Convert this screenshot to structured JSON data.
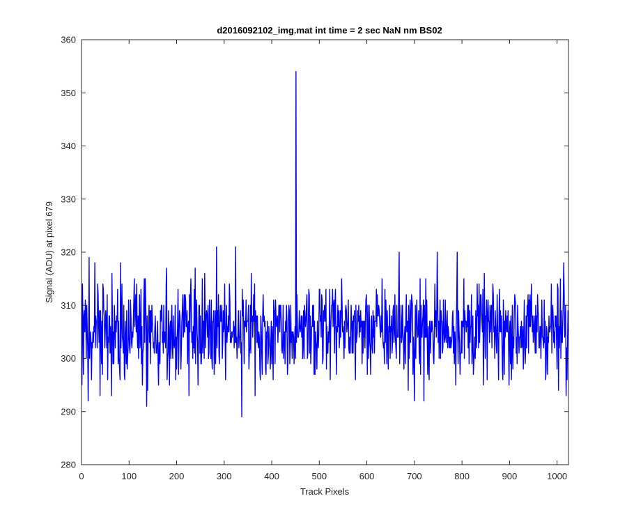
{
  "chart_data": {
    "type": "line",
    "title": "d2016092102_img.mat int time = 2 sec  NaN nm BS02",
    "xlabel": "Track Pixels",
    "ylabel": "Signal (ADU) at pixel 679",
    "xlim": [
      0,
      1024
    ],
    "ylim": [
      280,
      360
    ],
    "xticks": [
      0,
      100,
      200,
      300,
      400,
      500,
      600,
      700,
      800,
      900,
      1000
    ],
    "yticks": [
      280,
      290,
      300,
      310,
      320,
      330,
      340,
      350,
      360
    ],
    "grid": false,
    "legend": "none",
    "series": [
      {
        "color": "#0000ff",
        "noise": {
          "n_points": 1024,
          "baseline": 305.5,
          "min": 289,
          "max": 321
        },
        "points": [
          {
            "x": 1,
            "y": 295
          },
          {
            "x": 5,
            "y": 308
          },
          {
            "x": 10,
            "y": 300
          },
          {
            "x": 14,
            "y": 292
          },
          {
            "x": 16,
            "y": 319
          },
          {
            "x": 21,
            "y": 296
          },
          {
            "x": 28,
            "y": 318
          },
          {
            "x": 39,
            "y": 293
          },
          {
            "x": 45,
            "y": 314
          },
          {
            "x": 55,
            "y": 296
          },
          {
            "x": 82,
            "y": 318
          },
          {
            "x": 91,
            "y": 296
          },
          {
            "x": 128,
            "y": 295
          },
          {
            "x": 132,
            "y": 315
          },
          {
            "x": 137,
            "y": 291
          },
          {
            "x": 139,
            "y": 294
          },
          {
            "x": 198,
            "y": 296
          },
          {
            "x": 245,
            "y": 295
          },
          {
            "x": 284,
            "y": 321
          },
          {
            "x": 303,
            "y": 296
          },
          {
            "x": 324,
            "y": 321
          },
          {
            "x": 337,
            "y": 289
          },
          {
            "x": 376,
            "y": 296
          },
          {
            "x": 450,
            "y": 300
          },
          {
            "x": 451,
            "y": 354
          },
          {
            "x": 452,
            "y": 303
          },
          {
            "x": 523,
            "y": 296
          },
          {
            "x": 668,
            "y": 320
          },
          {
            "x": 700,
            "y": 292
          },
          {
            "x": 720,
            "y": 292
          },
          {
            "x": 748,
            "y": 320
          },
          {
            "x": 790,
            "y": 320
          },
          {
            "x": 877,
            "y": 296
          },
          {
            "x": 1003,
            "y": 294
          },
          {
            "x": 1014,
            "y": 318
          },
          {
            "x": 1019,
            "y": 293
          }
        ]
      }
    ]
  }
}
